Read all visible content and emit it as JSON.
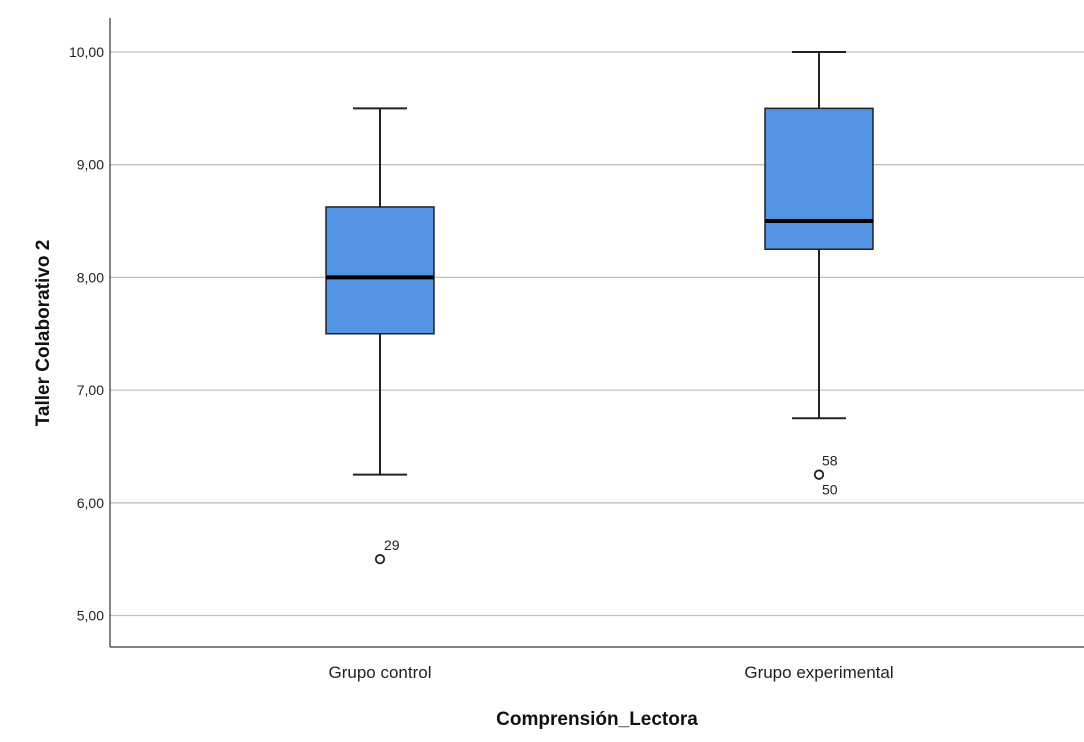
{
  "chart_data": {
    "type": "boxplot",
    "title": "",
    "xlabel": "Comprensión_Lectora",
    "ylabel": "Taller  Colaborativo  2",
    "ylim": [
      4.7,
      10.35
    ],
    "yticks": [
      {
        "value": 5,
        "label": "5,00"
      },
      {
        "value": 6,
        "label": "6,00"
      },
      {
        "value": 7,
        "label": "7,00"
      },
      {
        "value": 8,
        "label": "8,00"
      },
      {
        "value": 9,
        "label": "9,00"
      },
      {
        "value": 10,
        "label": "10,00"
      }
    ],
    "grid": true,
    "categories": [
      "Grupo control",
      "Grupo experimental"
    ],
    "boxes": [
      {
        "category": "Grupo control",
        "whisker_low": 6.25,
        "q1": 7.5,
        "median": 8.0,
        "q3": 8.625,
        "whisker_high": 9.5,
        "outliers": [
          {
            "value": 5.5,
            "label": "29"
          }
        ]
      },
      {
        "category": "Grupo experimental",
        "whisker_low": 6.75,
        "q1": 8.25,
        "median": 8.5,
        "q3": 9.5,
        "whisker_high": 10.0,
        "outliers": [
          {
            "value": 6.25,
            "label": "58"
          },
          {
            "value": 6.25,
            "label": "50"
          }
        ]
      }
    ],
    "colors": {
      "box_fill": "#5393E3",
      "box_stroke": "#222222",
      "grid": "#BFBFBF",
      "axis": "#333333"
    }
  }
}
